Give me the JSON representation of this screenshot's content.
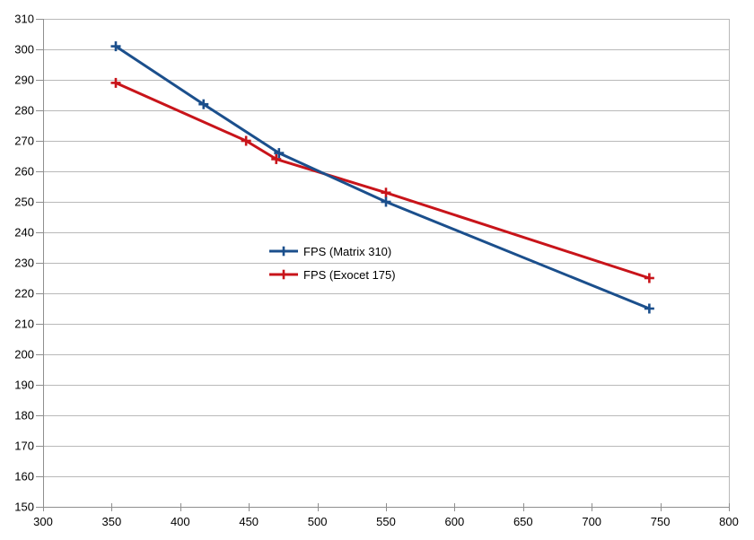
{
  "chart_data": {
    "type": "line",
    "title": "",
    "xlabel": "",
    "ylabel": "",
    "xlim": [
      300,
      800
    ],
    "ylim": [
      150,
      310
    ],
    "x_ticks": [
      300,
      350,
      400,
      450,
      500,
      550,
      600,
      650,
      700,
      750,
      800
    ],
    "y_ticks": [
      150,
      160,
      170,
      180,
      190,
      200,
      210,
      220,
      230,
      240,
      250,
      260,
      270,
      280,
      290,
      300,
      310
    ],
    "grid": "horizontal",
    "marker": "plus",
    "legend_position": "inside-center-left",
    "series": [
      {
        "name": "FPS (Matrix 310)",
        "color": "#1b4f8c",
        "points": [
          {
            "x": 353,
            "y": 301
          },
          {
            "x": 417,
            "y": 282
          },
          {
            "x": 472,
            "y": 266
          },
          {
            "x": 550,
            "y": 250
          },
          {
            "x": 742,
            "y": 215
          }
        ]
      },
      {
        "name": "FPS (Exocet 175)",
        "color": "#c8141a",
        "points": [
          {
            "x": 353,
            "y": 289
          },
          {
            "x": 448,
            "y": 270
          },
          {
            "x": 470,
            "y": 264
          },
          {
            "x": 550,
            "y": 253
          },
          {
            "x": 742,
            "y": 225
          }
        ]
      }
    ]
  },
  "style": {
    "background": "#ffffff",
    "grid_color": "#b9b9b9",
    "axis_color": "#8f8f8f",
    "text_color": "#000000"
  }
}
